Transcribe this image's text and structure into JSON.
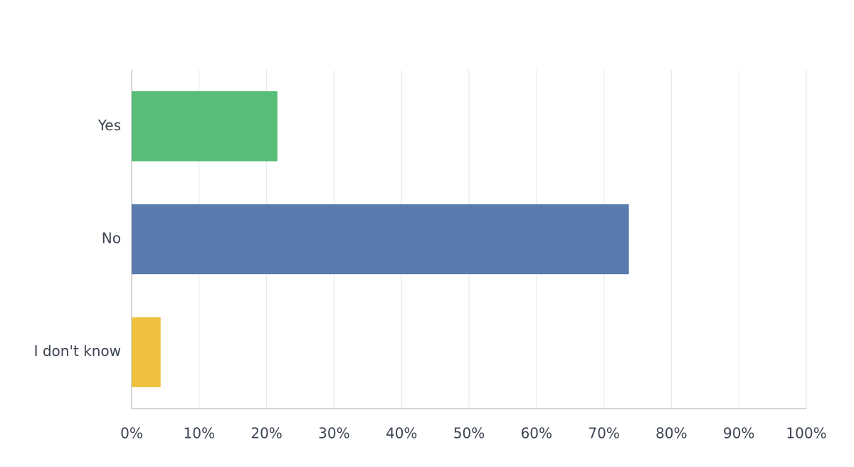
{
  "chart_data": {
    "type": "bar",
    "orientation": "horizontal",
    "categories": [
      "Yes",
      "No",
      "I don't know"
    ],
    "values": [
      21.6,
      73.7,
      4.3
    ],
    "colors": [
      "#57bd77",
      "#5a7bb0",
      "#eec13f"
    ],
    "xlim": [
      0,
      100
    ],
    "xticks": [
      {
        "value": 0,
        "label": "0%"
      },
      {
        "value": 10,
        "label": "10%"
      },
      {
        "value": 20,
        "label": "20%"
      },
      {
        "value": 30,
        "label": "30%"
      },
      {
        "value": 40,
        "label": "40%"
      },
      {
        "value": 50,
        "label": "50%"
      },
      {
        "value": 60,
        "label": "60%"
      },
      {
        "value": 70,
        "label": "70%"
      },
      {
        "value": 80,
        "label": "80%"
      },
      {
        "value": 90,
        "label": "90%"
      },
      {
        "value": 100,
        "label": "100%"
      }
    ],
    "grid": true
  }
}
